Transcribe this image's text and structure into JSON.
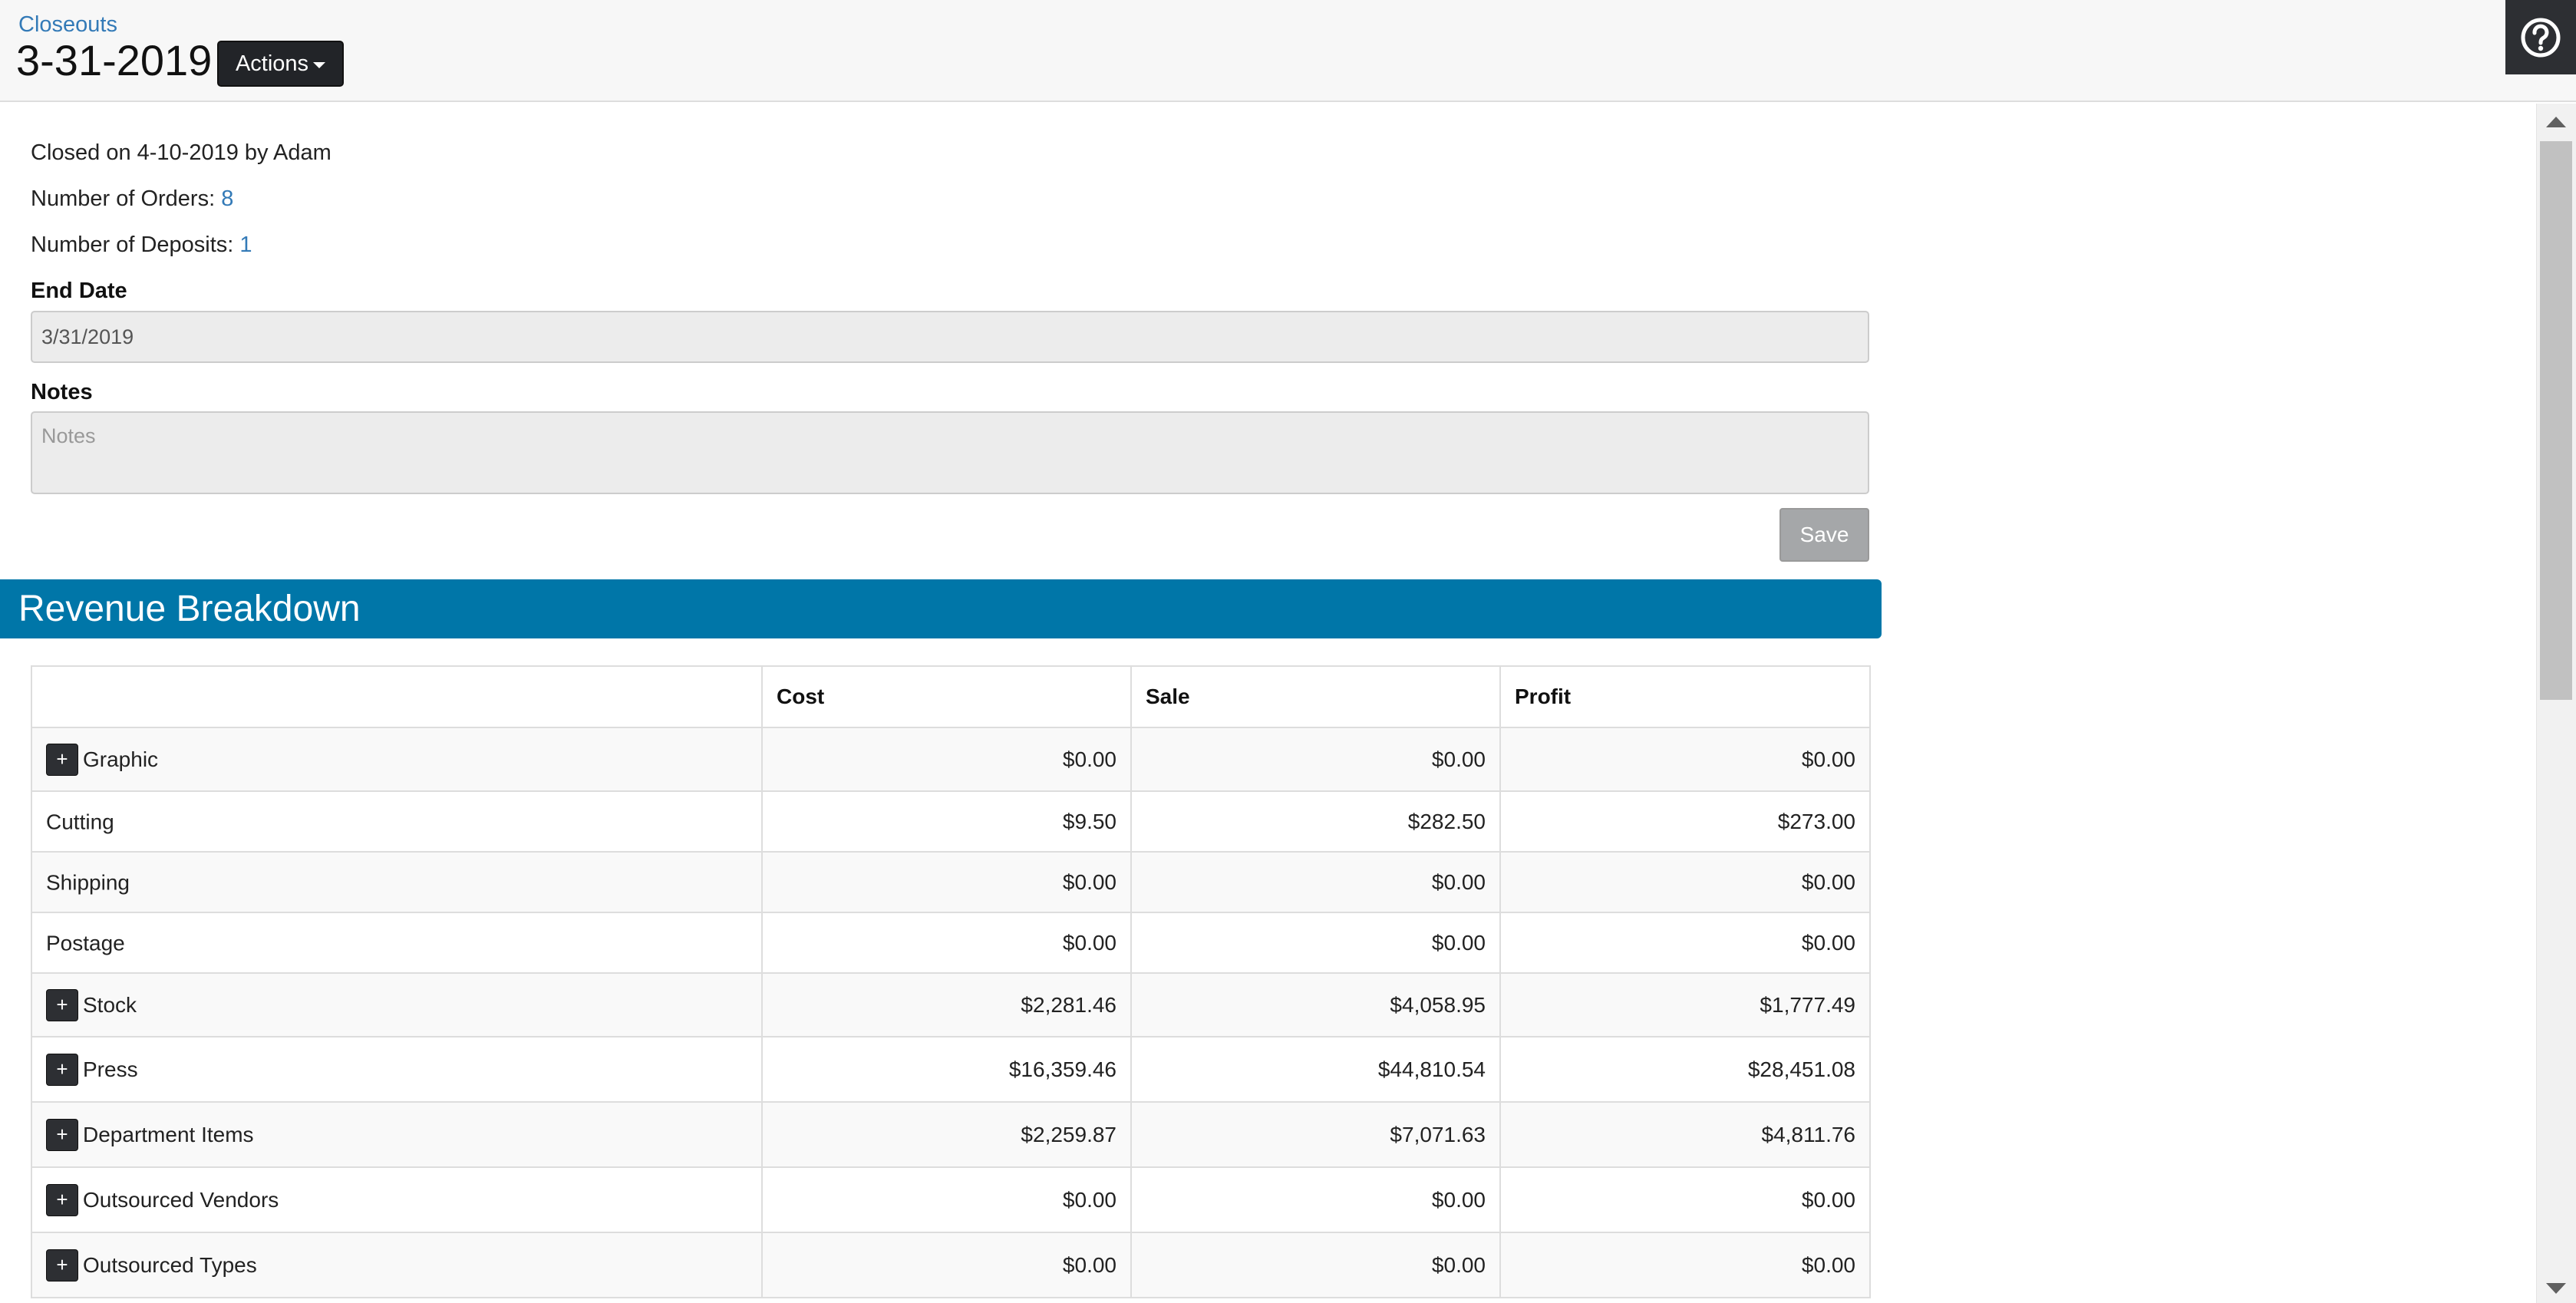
{
  "header": {
    "breadcrumb": "Closeouts",
    "title": "3-31-2019",
    "actions_label": "Actions",
    "help_icon": "question-circle-icon"
  },
  "info": {
    "closed_text": "Closed on 4-10-2019 by Adam",
    "orders_label": "Number of Orders: ",
    "orders_value": "8",
    "deposits_label": "Number of Deposits: ",
    "deposits_value": "1"
  },
  "form": {
    "end_date_label": "End Date",
    "end_date_value": "3/31/2019",
    "notes_label": "Notes",
    "notes_placeholder": "Notes",
    "save_label": "Save"
  },
  "revenue": {
    "title": "Revenue Breakdown",
    "columns": [
      "",
      "Cost",
      "Sale",
      "Profit"
    ],
    "rows": [
      {
        "label": "Graphic",
        "expandable": true,
        "cost": "$0.00",
        "sale": "$0.00",
        "profit": "$0.00"
      },
      {
        "label": "Cutting",
        "expandable": false,
        "cost": "$9.50",
        "sale": "$282.50",
        "profit": "$273.00"
      },
      {
        "label": "Shipping",
        "expandable": false,
        "cost": "$0.00",
        "sale": "$0.00",
        "profit": "$0.00"
      },
      {
        "label": "Postage",
        "expandable": false,
        "cost": "$0.00",
        "sale": "$0.00",
        "profit": "$0.00"
      },
      {
        "label": "Stock",
        "expandable": true,
        "cost": "$2,281.46",
        "sale": "$4,058.95",
        "profit": "$1,777.49"
      },
      {
        "label": "Press",
        "expandable": true,
        "cost": "$16,359.46",
        "sale": "$44,810.54",
        "profit": "$28,451.08"
      },
      {
        "label": "Department Items",
        "expandable": true,
        "cost": "$2,259.87",
        "sale": "$7,071.63",
        "profit": "$4,811.76"
      },
      {
        "label": "Outsourced Vendors",
        "expandable": true,
        "cost": "$0.00",
        "sale": "$0.00",
        "profit": "$0.00"
      },
      {
        "label": "Outsourced Types",
        "expandable": true,
        "cost": "$0.00",
        "sale": "$0.00",
        "profit": "$0.00"
      }
    ],
    "expand_symbol": "+"
  },
  "colors": {
    "accent": "#0076a8",
    "link": "#337ab7",
    "dark_button": "#222428"
  }
}
